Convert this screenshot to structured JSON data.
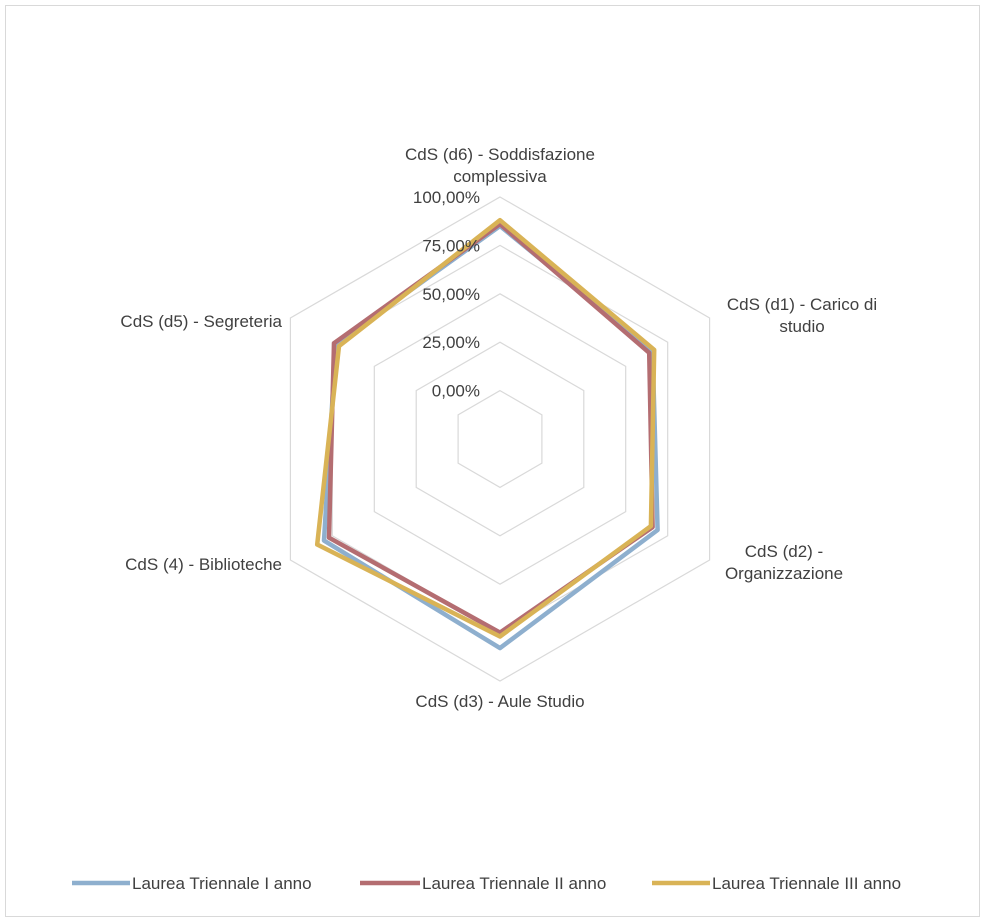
{
  "chart_data": {
    "type": "radar",
    "categories": [
      "CdS (d6) - Soddisfazione complessiva",
      "CdS (d1) - Carico di studio",
      "CdS (d2) - Organizzazione",
      "CdS (d3) - Aule Studio",
      "CdS (4) - Biblioteche",
      "CdS (d5) - Segreteria"
    ],
    "category_label_lines": [
      [
        "CdS (d6) - Soddisfazione",
        "complessiva"
      ],
      [
        "CdS (d1) - Carico di",
        "studio"
      ],
      [
        "CdS (d2) -",
        "Organizzazione"
      ],
      [
        "CdS (d3) - Aule Studio"
      ],
      [
        "CdS (4) - Biblioteche"
      ],
      [
        "CdS (d5) - Segreteria"
      ]
    ],
    "ticks": [
      "0,00%",
      "25,00%",
      "50,00%",
      "75,00%",
      "100,00%"
    ],
    "rmin": -0.25,
    "rmax": 1.0,
    "series": [
      {
        "name": "Laurea Triennale I anno",
        "color": "#8eafce",
        "values": [
          0.85,
          0.66,
          0.69,
          0.83,
          0.8,
          0.73
        ]
      },
      {
        "name": "Laurea Triennale II anno",
        "color": "#b46d71",
        "values": [
          0.86,
          0.64,
          0.66,
          0.75,
          0.77,
          0.74
        ]
      },
      {
        "name": "Laurea Triennale III anno",
        "color": "#d9b356",
        "values": [
          0.88,
          0.67,
          0.65,
          0.77,
          0.84,
          0.71
        ]
      }
    ],
    "grid": true,
    "legend_position": "bottom"
  }
}
